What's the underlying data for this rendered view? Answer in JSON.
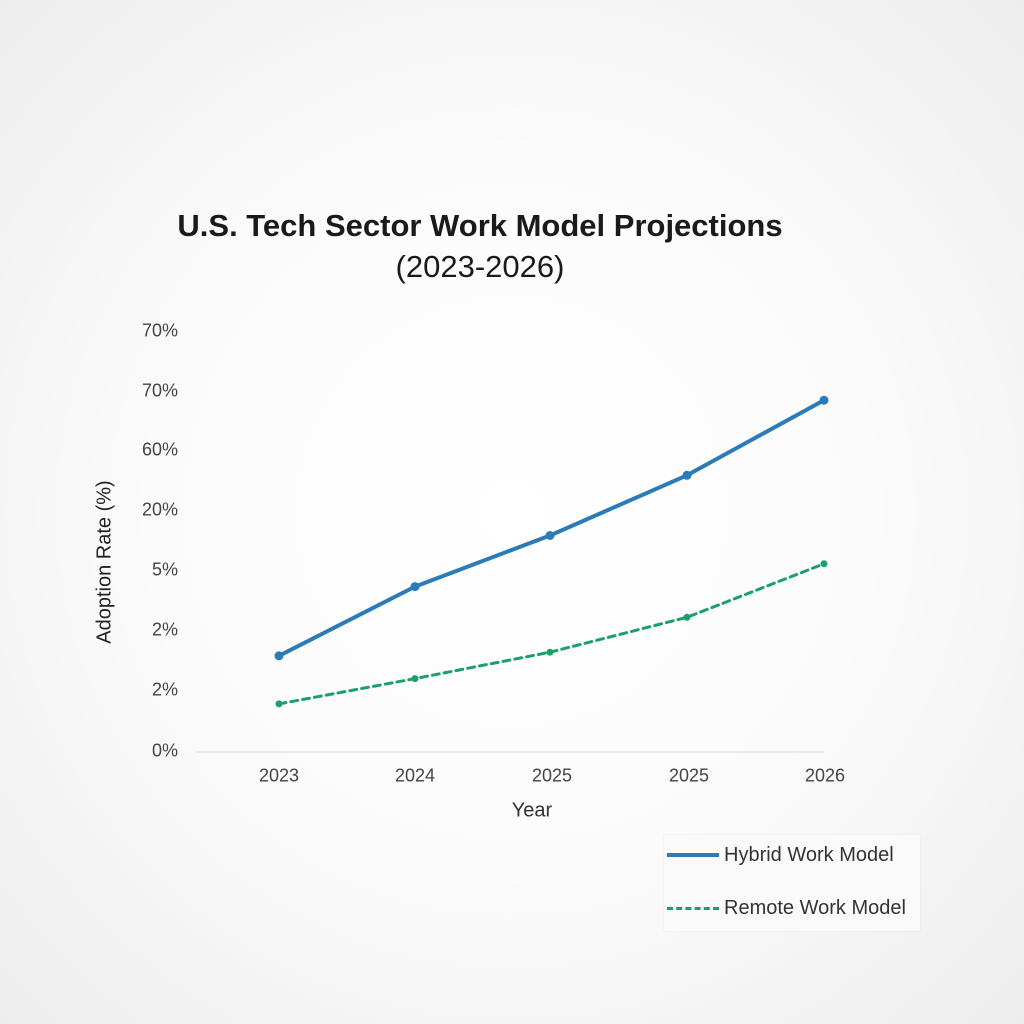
{
  "chart_data": {
    "type": "line",
    "title_line_1": "U.S. Tech Sector Work Model Projections",
    "title_line_2": "(2023-2026)",
    "xlabel": "Year",
    "ylabel": "Adoption Rate (%)",
    "x_tick_labels": [
      "2023",
      "2024",
      "2025",
      "2025",
      "2026"
    ],
    "y_tick_labels": [
      "0%",
      "2%",
      "2%",
      "5%",
      "20%",
      "60%",
      "70%",
      "70%"
    ],
    "ylim": [
      0,
      70
    ],
    "grid": false,
    "legend_placement": "bottom-right",
    "series": [
      {
        "name": "Hybrid Work Model",
        "color": "#2a7bb8",
        "style": "solid",
        "markers": true,
        "values": [
          16,
          27.5,
          36,
          46,
          58.5
        ]
      },
      {
        "name": "Remote Work Model",
        "color": "#1ba06a",
        "style": "dashed",
        "markers": true,
        "values": [
          8,
          12.2,
          16.6,
          22.4,
          31.3
        ]
      }
    ]
  }
}
